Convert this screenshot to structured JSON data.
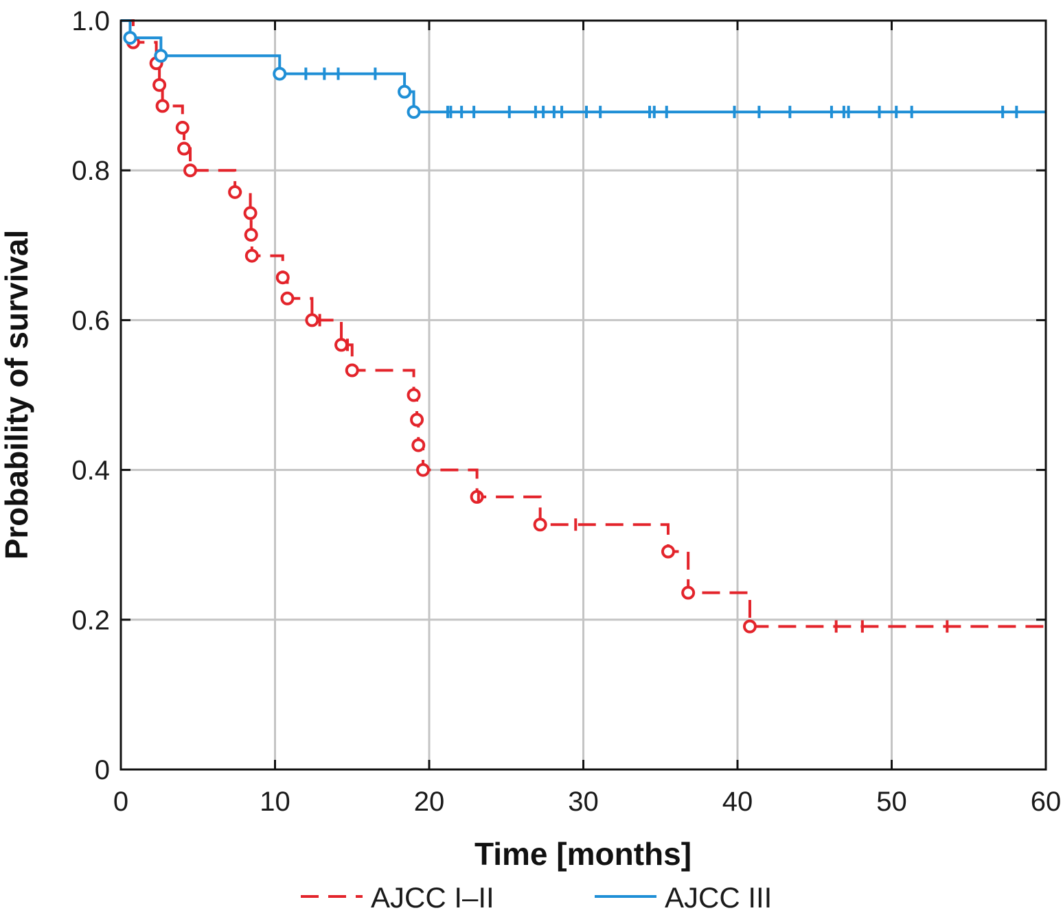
{
  "chart_data": {
    "type": "line",
    "subtype": "kaplan-meier",
    "xlabel": "Time [months]",
    "ylabel": "Probability of survival",
    "xlim": [
      0,
      60
    ],
    "ylim": [
      0,
      1
    ],
    "x_ticks": [
      0,
      10,
      20,
      30,
      40,
      50,
      60
    ],
    "x_tick_labels": [
      "0",
      "10",
      "20",
      "30",
      "40",
      "50",
      "60"
    ],
    "y_ticks": [
      0,
      0.2,
      0.4,
      0.6,
      0.8,
      1.0
    ],
    "y_tick_labels": [
      "0",
      "0.2",
      "0.4",
      "0.6",
      "0.8",
      "1.0"
    ],
    "grid": true,
    "legend_position": "bottom",
    "series": [
      {
        "name": "AJCC I–II",
        "color": "#e3242b",
        "line_style": "dashed",
        "steps": [
          [
            0,
            1.0
          ],
          [
            0.8,
            0.971
          ],
          [
            2.3,
            0.943
          ],
          [
            2.5,
            0.914
          ],
          [
            2.7,
            0.886
          ],
          [
            4.0,
            0.857
          ],
          [
            4.1,
            0.829
          ],
          [
            4.5,
            0.8
          ],
          [
            7.4,
            0.771
          ],
          [
            8.4,
            0.743
          ],
          [
            8.45,
            0.714
          ],
          [
            8.5,
            0.686
          ],
          [
            10.5,
            0.657
          ],
          [
            10.8,
            0.629
          ],
          [
            12.4,
            0.6
          ],
          [
            14.3,
            0.567
          ],
          [
            15.0,
            0.533
          ],
          [
            19.0,
            0.5
          ],
          [
            19.2,
            0.467
          ],
          [
            19.3,
            0.433
          ],
          [
            19.6,
            0.4
          ],
          [
            23.1,
            0.364
          ],
          [
            27.2,
            0.327
          ],
          [
            35.5,
            0.291
          ],
          [
            36.8,
            0.236
          ],
          [
            40.8,
            0.191
          ]
        ],
        "censored": [
          12.9,
          14.7,
          23.2,
          29.5,
          46.4,
          48.1,
          53.6
        ],
        "x_end": 60
      },
      {
        "name": "AJCC III",
        "color": "#1f8fd6",
        "line_style": "solid",
        "steps": [
          [
            0,
            1.0
          ],
          [
            0.6,
            0.977
          ],
          [
            2.6,
            0.953
          ],
          [
            10.3,
            0.929
          ],
          [
            18.4,
            0.905
          ],
          [
            19.0,
            0.878
          ]
        ],
        "censored": [
          12.0,
          13.2,
          14.1,
          16.5,
          21.2,
          21.4,
          22.1,
          22.9,
          25.2,
          26.9,
          27.4,
          28.1,
          28.6,
          30.2,
          31.1,
          34.3,
          34.6,
          35.4,
          39.8,
          41.4,
          43.4,
          46.1,
          46.9,
          47.2,
          49.2,
          50.3,
          51.3,
          57.2,
          58.1
        ]
      }
    ]
  }
}
